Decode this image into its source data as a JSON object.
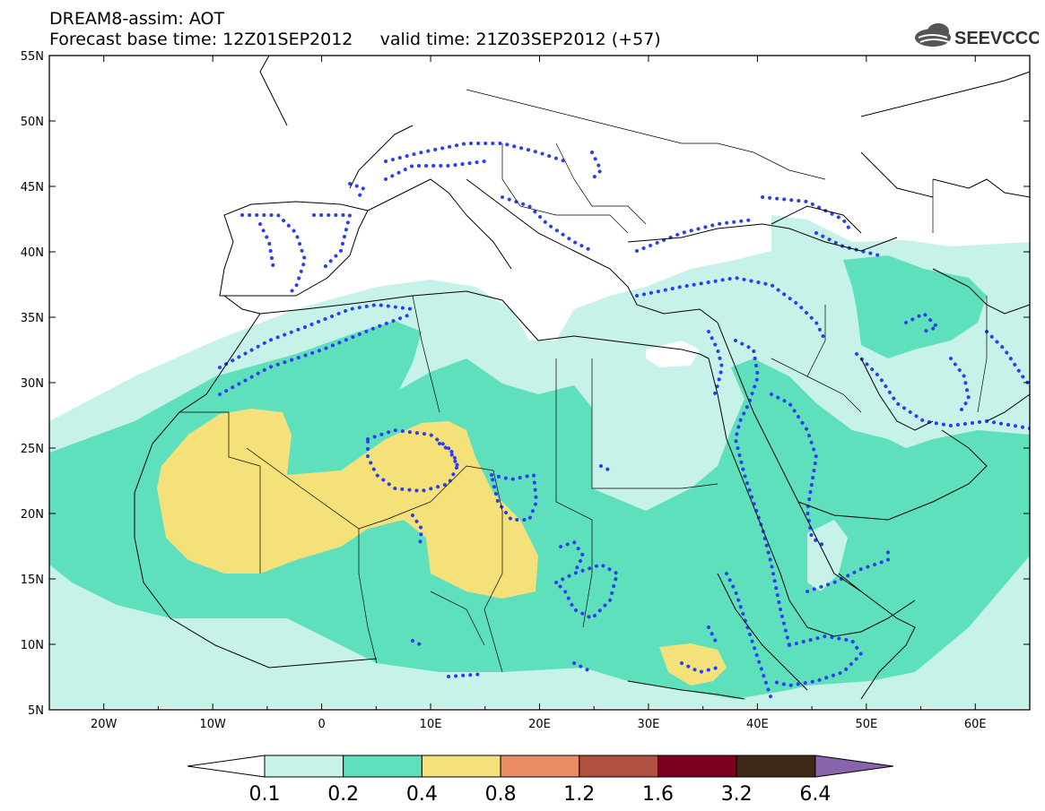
{
  "header": {
    "line1": "DREAM8-assim: AOT",
    "line2": "Forecast base time: 12Z01SEP2012     valid time: 21Z03SEP2012 (+57)",
    "logo_text": "SEEVCCC"
  },
  "map": {
    "variable": "AOT",
    "region": {
      "lon_range": [
        -25,
        65
      ],
      "lat_range": [
        5,
        55
      ]
    },
    "lat_labels": [
      "55N",
      "50N",
      "45N",
      "40N",
      "35N",
      "30N",
      "25N",
      "20N",
      "15N",
      "10N",
      "5N"
    ],
    "lon_labels": [
      "20W",
      "10W",
      "0",
      "10E",
      "20E",
      "30E",
      "40E",
      "50E",
      "60E"
    ],
    "colors": {
      "c01": "#c6f2e9",
      "c02": "#5fe0bd",
      "c04": "#f4e17a",
      "contour": "#2c3ff0",
      "coast": "#000000"
    }
  },
  "colorbar": {
    "labels": [
      "0.1",
      "0.2",
      "0.4",
      "0.8",
      "1.2",
      "1.6",
      "3.2",
      "6.4"
    ],
    "colors": [
      "#ffffff",
      "#c6f2e9",
      "#5fe0bd",
      "#f4e17a",
      "#ea8c66",
      "#b05040",
      "#7d0022",
      "#3f2815",
      "#8a64aa"
    ]
  }
}
